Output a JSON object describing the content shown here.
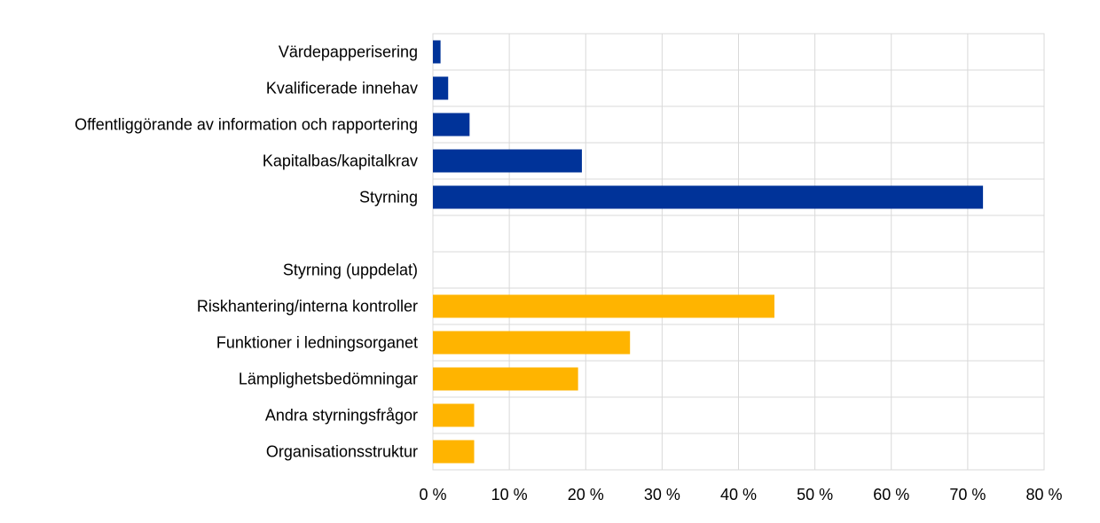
{
  "chart_data": {
    "type": "bar",
    "orientation": "horizontal",
    "title": "",
    "xlabel": "",
    "ylabel": "",
    "xlim": [
      0,
      80
    ],
    "x_tick_labels": [
      "0 %",
      "10 %",
      "20 %",
      "30 %",
      "40 %",
      "50 %",
      "60 %",
      "70 %",
      "80 %"
    ],
    "grid": true,
    "colors": {
      "main": "#003399",
      "breakdown": "#FFB400"
    },
    "categories": [
      {
        "label": "Värdepapperisering",
        "value": 1,
        "group": "main"
      },
      {
        "label": "Kvalificerade innehav",
        "value": 2,
        "group": "main"
      },
      {
        "label": "Offentliggörande av information och rapportering",
        "value": 4.8,
        "group": "main"
      },
      {
        "label": "Kapitalbas/kapitalkrav",
        "value": 19.5,
        "group": "main"
      },
      {
        "label": "Styrning",
        "value": 72,
        "group": "main"
      },
      {
        "label": "",
        "value": null,
        "group": "spacer"
      },
      {
        "label": "Styrning (uppdelat)",
        "value": null,
        "group": "header"
      },
      {
        "label": "Riskhantering/interna kontroller",
        "value": 44.7,
        "group": "breakdown"
      },
      {
        "label": "Funktioner i ledningsorganet",
        "value": 25.8,
        "group": "breakdown"
      },
      {
        "label": "Lämplighetsbedömningar",
        "value": 19,
        "group": "breakdown"
      },
      {
        "label": "Andra styrningsfrågor",
        "value": 5.4,
        "group": "breakdown"
      },
      {
        "label": "Organisationsstruktur",
        "value": 5.4,
        "group": "breakdown"
      }
    ]
  }
}
